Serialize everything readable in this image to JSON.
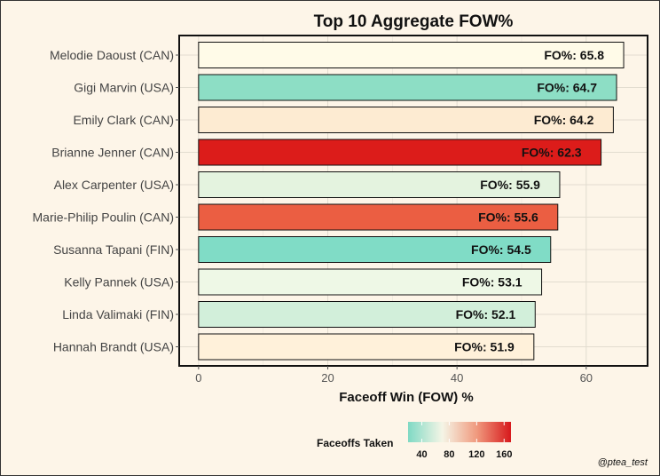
{
  "chart_data": {
    "type": "bar",
    "orientation": "horizontal",
    "title": "Top 10 Aggregate FOW%",
    "xlabel": "Faceoff Win (FOW) %",
    "ylabel": "",
    "xlim": [
      -3,
      69.5
    ],
    "xticks": [
      0,
      20,
      40,
      60
    ],
    "grid": true,
    "label_prefix": "FO%:",
    "categories": [
      "Melodie Daoust (CAN)",
      "Gigi Marvin (USA)",
      "Emily Clark (CAN)",
      "Brianne Jenner (CAN)",
      "Alex Carpenter (USA)",
      "Marie-Philip Poulin (CAN)",
      "Susanna Tapani (FIN)",
      "Kelly Pannek (USA)",
      "Linda Valimaki (FIN)",
      "Hannah Brandt (USA)"
    ],
    "values": [
      65.8,
      64.7,
      64.2,
      62.3,
      55.9,
      55.6,
      54.5,
      53.1,
      52.1,
      51.9
    ],
    "value_labels": [
      "65.8",
      "64.7",
      "64.2",
      "62.3",
      "55.9",
      "55.6",
      "54.5",
      "53.1",
      "52.1",
      "51.9"
    ],
    "fill_colors": [
      "#fffbe8",
      "#8ddec5",
      "#fdebd2",
      "#dc1c1a",
      "#e4f3df",
      "#eb5e42",
      "#80dcc6",
      "#eef8e6",
      "#d2efda",
      "#fff1da"
    ],
    "legend": {
      "title": "Faceoffs Taken",
      "position": "bottom",
      "ticks": [
        "40",
        "80",
        "120",
        "160"
      ],
      "colors": [
        "#7fd9c4",
        "#f5f5e6",
        "#f09a7e",
        "#d7191c"
      ]
    },
    "caption": "@ptea_test"
  }
}
